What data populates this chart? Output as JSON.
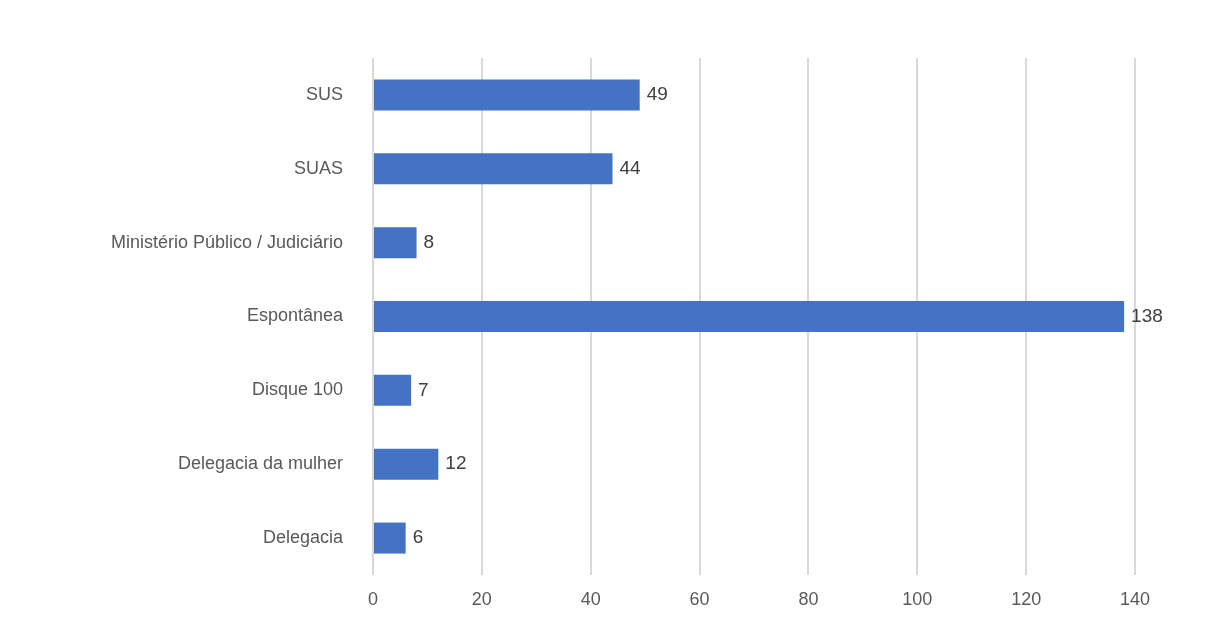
{
  "chart_data": {
    "type": "bar",
    "orientation": "horizontal",
    "categories": [
      "SUS",
      "SUAS",
      "Ministério Público / Judiciário",
      "Espontânea",
      "Disque 100",
      "Delegacia da mulher",
      "Delegacia"
    ],
    "values": [
      49,
      44,
      8,
      138,
      7,
      12,
      6
    ],
    "color": "#4472c4",
    "xlim": [
      0,
      140
    ],
    "xticks": [
      0,
      20,
      40,
      60,
      80,
      100,
      120,
      140
    ],
    "grid": "x",
    "data_labels": true
  }
}
